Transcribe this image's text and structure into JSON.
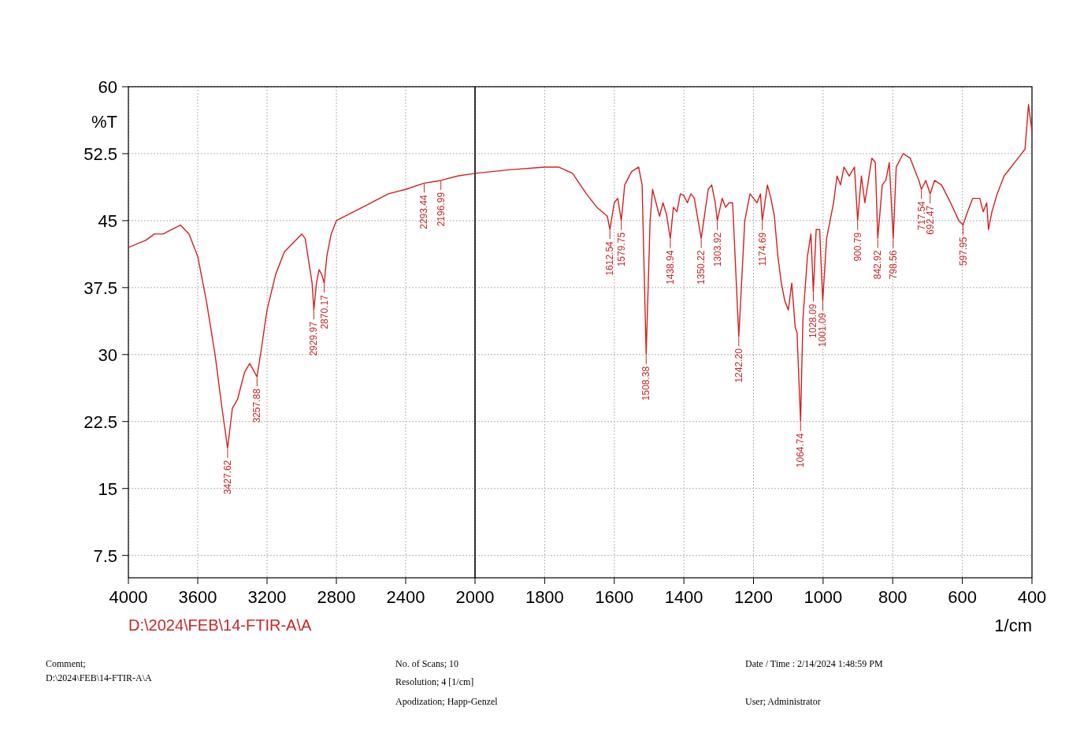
{
  "chart_data": [
    {
      "type": "line",
      "ylabel": "%T",
      "xlim": [
        4000,
        2000
      ],
      "ylim": [
        5,
        60
      ],
      "xticks": [
        4000,
        3600,
        3200,
        2800,
        2400
      ],
      "yticks": [
        60,
        52.5,
        45,
        37.5,
        30,
        22.5,
        15,
        7.5
      ],
      "grid": true,
      "series": [
        {
          "color": "#d42020",
          "x": [
            4000,
            3900,
            3850,
            3800,
            3750,
            3700,
            3650,
            3600,
            3550,
            3500,
            3460,
            3427.62,
            3400,
            3370,
            3330,
            3300,
            3257.88,
            3230,
            3200,
            3150,
            3100,
            3050,
            3000,
            2980,
            2960,
            2940,
            2929.97,
            2915,
            2900,
            2885,
            2870.17,
            2855,
            2830,
            2800,
            2700,
            2600,
            2500,
            2400,
            2293.44,
            2196.99,
            2100,
            2000
          ],
          "values": [
            42,
            42.8,
            43.5,
            43.5,
            44,
            44.5,
            43.5,
            41,
            36,
            30,
            24,
            19.5,
            24,
            25,
            28,
            29,
            27.5,
            31,
            35,
            39,
            41.5,
            42.5,
            43.5,
            43,
            40.5,
            38,
            35,
            38,
            39.5,
            39,
            38,
            41,
            43.5,
            45,
            46,
            47,
            48,
            48.5,
            49.2,
            49.5,
            50,
            50.3
          ]
        }
      ],
      "annotations": [
        "D:\\2024\\FEB\\14-FTIR-A\\A",
        "Comment;",
        "D:\\2024\\FEB\\14-FTIR-A\\A",
        "No. of Scans; 10",
        "Resolution; 4 [1/cm]",
        "Apodization; Happ-Genzel",
        "Date / Time : 2/14/2024 1:48:59 PM",
        "User; Administrator",
        {
          "text": "3427.62",
          "x": 3427.62,
          "y": 19.5
        },
        {
          "text": "3257.88",
          "x": 3257.88,
          "y": 27.5
        },
        {
          "text": "2929.97",
          "x": 2929.97,
          "y": 35
        },
        {
          "text": "2870.17",
          "x": 2870.17,
          "y": 38
        },
        {
          "text": "2293.44",
          "x": 2293.44,
          "y": 49.2
        },
        {
          "text": "2196.99",
          "x": 2196.99,
          "y": 49.5
        }
      ]
    },
    {
      "type": "line",
      "xlabel": "1/cm",
      "xlim": [
        2000,
        400
      ],
      "ylim": [
        5,
        60
      ],
      "xticks": [
        2000,
        1800,
        1600,
        1400,
        1200,
        1000,
        800,
        600,
        400
      ],
      "yticks": [
        60,
        52.5,
        45,
        37.5,
        30,
        22.5,
        15,
        7.5
      ],
      "grid": true,
      "tick_labels": "x",
      "series": [
        {
          "color": "#d42020",
          "x": [
            2000,
            1900,
            1800,
            1760,
            1720,
            1680,
            1650,
            1620,
            1612.54,
            1600,
            1590,
            1579.75,
            1570,
            1550,
            1530,
            1520,
            1508.38,
            1497,
            1490,
            1480,
            1470,
            1460,
            1450,
            1438.94,
            1430,
            1420,
            1410,
            1400,
            1390,
            1380,
            1370,
            1350.22,
            1330,
            1320,
            1310,
            1303.92,
            1290,
            1280,
            1270,
            1260,
            1242.2,
            1225,
            1210,
            1200,
            1190,
            1180,
            1174.69,
            1160,
            1150,
            1140,
            1130,
            1120,
            1110,
            1100,
            1090,
            1080,
            1075,
            1064.74,
            1058,
            1045,
            1035,
            1028.09,
            1020,
            1010,
            1001.09,
            990,
            980,
            970,
            960,
            950,
            940,
            925,
            910,
            900.79,
            890,
            880,
            860,
            850,
            842.92,
            830,
            820,
            810,
            798.56,
            790,
            770,
            750,
            740,
            725,
            717.54,
            705,
            692.47,
            680,
            660,
            640,
            610,
            597.95,
            585,
            570,
            550,
            540,
            530,
            525,
            515,
            500,
            480,
            460,
            440,
            420,
            410,
            400
          ],
          "values": [
            50.3,
            50.7,
            51,
            51,
            50.3,
            48,
            46.5,
            45.5,
            44,
            47,
            47.5,
            45,
            49,
            50.5,
            51,
            49,
            30,
            45,
            48.5,
            47,
            45.5,
            47,
            45.7,
            43,
            46.5,
            46,
            48,
            47.8,
            47,
            48,
            47.5,
            43,
            48.5,
            49,
            47,
            45,
            47.5,
            46.5,
            47,
            47,
            32,
            45,
            48,
            47.5,
            47,
            48,
            45,
            49,
            47.5,
            45.5,
            41,
            38,
            36,
            35,
            38,
            33,
            32.5,
            22.5,
            34,
            41,
            43.5,
            37,
            44,
            44,
            36,
            43,
            45,
            47,
            50,
            49,
            51,
            50,
            51,
            45,
            50,
            47,
            52,
            51.5,
            43,
            49,
            49.5,
            51.5,
            43,
            51,
            52.5,
            52,
            51,
            49.5,
            48.5,
            49.5,
            48,
            49.5,
            49,
            47.5,
            45,
            44.5,
            46,
            47.5,
            47.5,
            46,
            47,
            44,
            46,
            48,
            50,
            51,
            52,
            53,
            58,
            55
          ]
        }
      ],
      "annotations": [
        {
          "text": "1612.54",
          "x": 1612.54,
          "y": 44
        },
        {
          "text": "1579.75",
          "x": 1579.75,
          "y": 45
        },
        {
          "text": "1508.38",
          "x": 1508.38,
          "y": 30
        },
        {
          "text": "1438.94",
          "x": 1438.94,
          "y": 43
        },
        {
          "text": "1350.22",
          "x": 1350.22,
          "y": 43
        },
        {
          "text": "1303.92",
          "x": 1303.92,
          "y": 45
        },
        {
          "text": "1242.20",
          "x": 1242.2,
          "y": 32
        },
        {
          "text": "1174.69",
          "x": 1174.69,
          "y": 45
        },
        {
          "text": "1064.74",
          "x": 1064.74,
          "y": 22.5
        },
        {
          "text": "1028.09",
          "x": 1028.09,
          "y": 37
        },
        {
          "text": "1001.09",
          "x": 1001.09,
          "y": 36
        },
        {
          "text": "900.79",
          "x": 900.79,
          "y": 45
        },
        {
          "text": "842.92",
          "x": 842.92,
          "y": 43
        },
        {
          "text": "798.56",
          "x": 798.56,
          "y": 43
        },
        {
          "text": "717.54",
          "x": 717.54,
          "y": 48.5
        },
        {
          "text": "692.47",
          "x": 692.47,
          "y": 48
        },
        {
          "text": "597.95",
          "x": 597.95,
          "y": 44.5
        }
      ]
    }
  ]
}
